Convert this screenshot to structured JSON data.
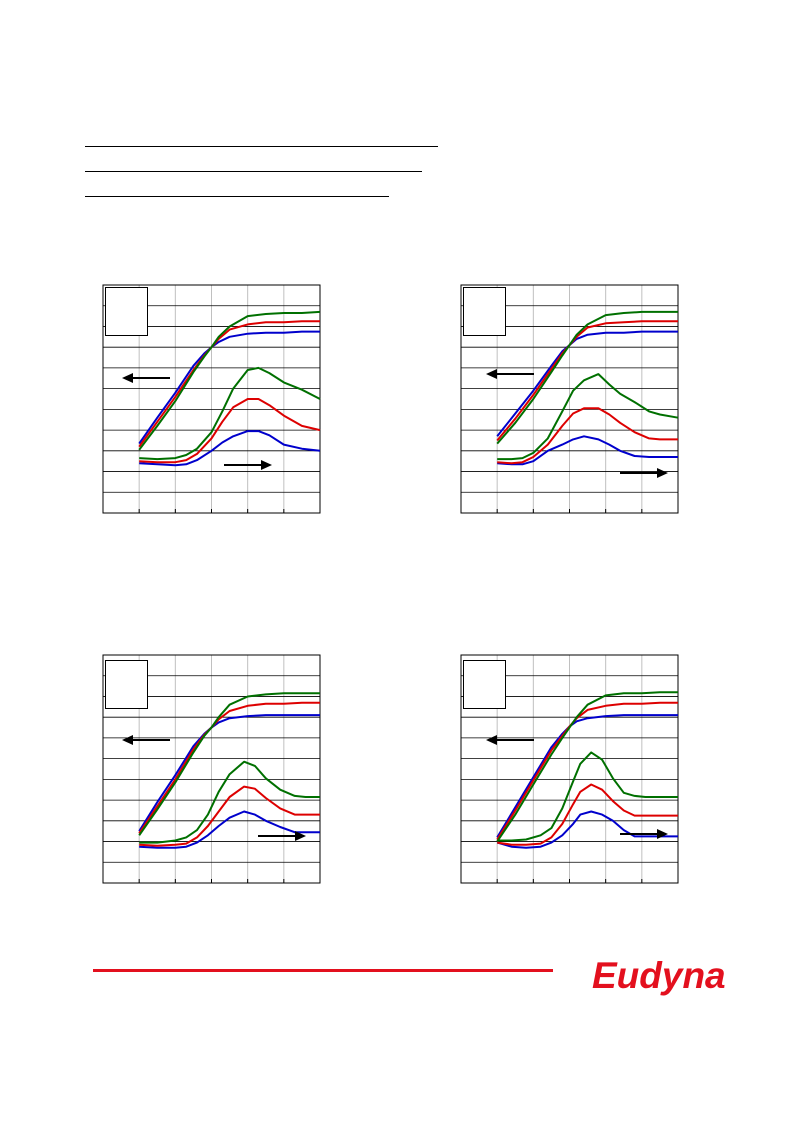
{
  "page": {
    "background": "#ffffff"
  },
  "footer": {
    "rule_color": "#e3101e",
    "logo_text": "Eudyna",
    "logo_color": "#e3101e"
  },
  "icons": {
    "arrow_left": "arrow-left-icon",
    "arrow_right": "arrow-right-icon"
  },
  "colors": {
    "series_1": "#0000cc",
    "series_2": "#dd0000",
    "series_3": "#007000"
  },
  "chart_data": [
    {
      "type": "line",
      "grid": true,
      "xlim": [
        0,
        6
      ],
      "ylim": [
        0,
        11
      ],
      "series": [
        {
          "color": "#0000cc",
          "axis": "left",
          "x": [
            1,
            1.5,
            2,
            2.5,
            2.8,
            3,
            3.2,
            3.5,
            4,
            4.5,
            5,
            5.5,
            6
          ],
          "y": [
            3.35,
            4.6,
            5.8,
            7.1,
            7.7,
            8.0,
            8.25,
            8.5,
            8.65,
            8.7,
            8.7,
            8.75,
            8.75
          ]
        },
        {
          "color": "#dd0000",
          "axis": "left",
          "x": [
            1,
            1.5,
            2,
            2.5,
            2.8,
            3,
            3.2,
            3.5,
            4,
            4.5,
            5,
            5.5,
            6
          ],
          "y": [
            3.2,
            4.4,
            5.6,
            6.9,
            7.6,
            8.0,
            8.4,
            8.85,
            9.1,
            9.2,
            9.2,
            9.25,
            9.25
          ]
        },
        {
          "color": "#007000",
          "axis": "left",
          "x": [
            1,
            1.5,
            2,
            2.5,
            2.8,
            3,
            3.2,
            3.5,
            4,
            4.5,
            5,
            5.5,
            6
          ],
          "y": [
            3.05,
            4.2,
            5.4,
            6.8,
            7.55,
            8.0,
            8.5,
            9.0,
            9.5,
            9.6,
            9.65,
            9.65,
            9.7
          ]
        },
        {
          "color": "#0000cc",
          "axis": "right",
          "x": [
            1,
            1.5,
            2,
            2.3,
            2.6,
            3,
            3.3,
            3.6,
            4,
            4.3,
            4.6,
            5,
            5.5,
            6
          ],
          "y": [
            2.4,
            2.35,
            2.3,
            2.35,
            2.55,
            3.0,
            3.4,
            3.7,
            3.95,
            3.95,
            3.75,
            3.3,
            3.1,
            3.0
          ]
        },
        {
          "color": "#dd0000",
          "axis": "right",
          "x": [
            1,
            1.5,
            2,
            2.3,
            2.6,
            3,
            3.3,
            3.6,
            4,
            4.3,
            4.6,
            5,
            5.5,
            6
          ],
          "y": [
            2.5,
            2.45,
            2.45,
            2.55,
            2.85,
            3.6,
            4.4,
            5.1,
            5.5,
            5.5,
            5.2,
            4.7,
            4.2,
            4.0
          ]
        },
        {
          "color": "#007000",
          "axis": "right",
          "x": [
            1,
            1.5,
            2,
            2.3,
            2.6,
            3,
            3.3,
            3.6,
            4,
            4.3,
            4.6,
            5,
            5.5,
            6
          ],
          "y": [
            2.65,
            2.6,
            2.65,
            2.8,
            3.1,
            3.9,
            4.9,
            6.0,
            6.9,
            7.0,
            6.75,
            6.3,
            5.95,
            5.5
          ]
        }
      ]
    },
    {
      "type": "line",
      "grid": true,
      "xlim": [
        0,
        6
      ],
      "ylim": [
        0,
        11
      ],
      "series": [
        {
          "color": "#0000cc",
          "axis": "left",
          "x": [
            1,
            1.5,
            2,
            2.5,
            2.8,
            3,
            3.2,
            3.5,
            4,
            4.5,
            5,
            5.5,
            6
          ],
          "y": [
            3.7,
            4.8,
            5.9,
            7.1,
            7.8,
            8.1,
            8.4,
            8.6,
            8.7,
            8.7,
            8.75,
            8.75,
            8.75
          ]
        },
        {
          "color": "#dd0000",
          "axis": "left",
          "x": [
            1,
            1.5,
            2,
            2.5,
            2.8,
            3,
            3.2,
            3.5,
            4,
            4.5,
            5,
            5.5,
            6
          ],
          "y": [
            3.5,
            4.55,
            5.7,
            6.95,
            7.7,
            8.1,
            8.5,
            8.95,
            9.15,
            9.2,
            9.25,
            9.25,
            9.25
          ]
        },
        {
          "color": "#007000",
          "axis": "left",
          "x": [
            1,
            1.5,
            2,
            2.5,
            2.8,
            3,
            3.2,
            3.5,
            4,
            4.5,
            5,
            5.5,
            6
          ],
          "y": [
            3.35,
            4.35,
            5.5,
            6.8,
            7.6,
            8.1,
            8.6,
            9.1,
            9.55,
            9.65,
            9.7,
            9.7,
            9.7
          ]
        },
        {
          "color": "#0000cc",
          "axis": "right",
          "x": [
            1,
            1.4,
            1.7,
            2,
            2.4,
            2.8,
            3.1,
            3.4,
            3.8,
            4.1,
            4.4,
            4.8,
            5.2,
            5.5,
            6
          ],
          "y": [
            2.4,
            2.35,
            2.35,
            2.5,
            3.0,
            3.3,
            3.55,
            3.7,
            3.55,
            3.3,
            3.0,
            2.75,
            2.7,
            2.7,
            2.7
          ]
        },
        {
          "color": "#dd0000",
          "axis": "right",
          "x": [
            1,
            1.4,
            1.7,
            2,
            2.4,
            2.8,
            3.1,
            3.4,
            3.8,
            4.1,
            4.4,
            4.8,
            5.2,
            5.5,
            6
          ],
          "y": [
            2.45,
            2.4,
            2.45,
            2.7,
            3.3,
            4.2,
            4.8,
            5.05,
            5.05,
            4.75,
            4.35,
            3.9,
            3.6,
            3.55,
            3.55
          ]
        },
        {
          "color": "#007000",
          "axis": "right",
          "x": [
            1,
            1.4,
            1.7,
            2,
            2.4,
            2.8,
            3.1,
            3.4,
            3.8,
            4.1,
            4.4,
            4.8,
            5.2,
            5.5,
            6
          ],
          "y": [
            2.6,
            2.6,
            2.65,
            2.9,
            3.6,
            4.9,
            5.9,
            6.4,
            6.7,
            6.2,
            5.75,
            5.35,
            4.9,
            4.75,
            4.6
          ]
        }
      ]
    },
    {
      "type": "line",
      "grid": true,
      "xlim": [
        0,
        6
      ],
      "ylim": [
        0,
        11
      ],
      "series": [
        {
          "color": "#0000cc",
          "axis": "left",
          "x": [
            1,
            1.5,
            2,
            2.5,
            2.8,
            3,
            3.2,
            3.5,
            4,
            4.5,
            5,
            5.5,
            6
          ],
          "y": [
            2.5,
            3.9,
            5.2,
            6.6,
            7.2,
            7.5,
            7.75,
            7.95,
            8.05,
            8.1,
            8.1,
            8.1,
            8.1
          ]
        },
        {
          "color": "#dd0000",
          "axis": "left",
          "x": [
            1,
            1.5,
            2,
            2.5,
            2.8,
            3,
            3.2,
            3.5,
            4,
            4.5,
            5,
            5.5,
            6
          ],
          "y": [
            2.4,
            3.7,
            5.0,
            6.45,
            7.15,
            7.5,
            7.9,
            8.3,
            8.55,
            8.65,
            8.65,
            8.7,
            8.7
          ]
        },
        {
          "color": "#007000",
          "axis": "left",
          "x": [
            1,
            1.5,
            2,
            2.5,
            2.8,
            3,
            3.2,
            3.5,
            4,
            4.5,
            5,
            5.5,
            6
          ],
          "y": [
            2.3,
            3.55,
            4.85,
            6.3,
            7.1,
            7.5,
            8.0,
            8.6,
            9.0,
            9.1,
            9.15,
            9.15,
            9.15
          ]
        },
        {
          "color": "#0000cc",
          "axis": "right",
          "x": [
            1,
            1.5,
            2,
            2.3,
            2.6,
            2.9,
            3.2,
            3.5,
            3.9,
            4.2,
            4.5,
            4.9,
            5.3,
            5.6,
            6
          ],
          "y": [
            1.75,
            1.7,
            1.7,
            1.75,
            1.95,
            2.3,
            2.75,
            3.15,
            3.45,
            3.3,
            3.0,
            2.7,
            2.45,
            2.45,
            2.45
          ]
        },
        {
          "color": "#dd0000",
          "axis": "right",
          "x": [
            1,
            1.5,
            2,
            2.3,
            2.6,
            2.9,
            3.2,
            3.5,
            3.9,
            4.2,
            4.5,
            4.9,
            5.3,
            5.6,
            6
          ],
          "y": [
            1.85,
            1.8,
            1.85,
            1.9,
            2.2,
            2.75,
            3.45,
            4.15,
            4.65,
            4.55,
            4.1,
            3.6,
            3.3,
            3.3,
            3.3
          ]
        },
        {
          "color": "#007000",
          "axis": "right",
          "x": [
            1,
            1.5,
            2,
            2.3,
            2.6,
            2.9,
            3.2,
            3.5,
            3.9,
            4.2,
            4.5,
            4.9,
            5.3,
            5.6,
            6
          ],
          "y": [
            1.95,
            1.95,
            2.05,
            2.2,
            2.55,
            3.3,
            4.4,
            5.25,
            5.85,
            5.65,
            5.05,
            4.5,
            4.2,
            4.15,
            4.15
          ]
        }
      ]
    },
    {
      "type": "line",
      "grid": true,
      "xlim": [
        0,
        6
      ],
      "ylim": [
        0,
        11
      ],
      "series": [
        {
          "color": "#0000cc",
          "axis": "left",
          "x": [
            1,
            1.5,
            2,
            2.5,
            2.8,
            3,
            3.2,
            3.5,
            4,
            4.5,
            5,
            5.5,
            6
          ],
          "y": [
            2.2,
            3.65,
            5.1,
            6.55,
            7.2,
            7.55,
            7.8,
            7.95,
            8.05,
            8.1,
            8.1,
            8.1,
            8.1
          ]
        },
        {
          "color": "#dd0000",
          "axis": "left",
          "x": [
            1,
            1.5,
            2,
            2.5,
            2.8,
            3,
            3.2,
            3.5,
            4,
            4.5,
            5,
            5.5,
            6
          ],
          "y": [
            2.1,
            3.5,
            4.95,
            6.4,
            7.1,
            7.55,
            7.95,
            8.35,
            8.55,
            8.65,
            8.65,
            8.7,
            8.7
          ]
        },
        {
          "color": "#007000",
          "axis": "left",
          "x": [
            1,
            1.5,
            2,
            2.5,
            2.8,
            3,
            3.2,
            3.5,
            4,
            4.5,
            5,
            5.5,
            6
          ],
          "y": [
            2.0,
            3.3,
            4.75,
            6.2,
            7.0,
            7.5,
            8.0,
            8.6,
            9.05,
            9.15,
            9.15,
            9.2,
            9.2
          ]
        },
        {
          "color": "#0000cc",
          "axis": "right",
          "x": [
            1,
            1.4,
            1.8,
            2.2,
            2.5,
            2.8,
            3.1,
            3.3,
            3.6,
            3.9,
            4.2,
            4.5,
            4.8,
            5.1,
            5.4,
            6
          ],
          "y": [
            1.95,
            1.75,
            1.7,
            1.75,
            1.95,
            2.3,
            2.85,
            3.3,
            3.45,
            3.3,
            3.0,
            2.55,
            2.25,
            2.25,
            2.25,
            2.25
          ]
        },
        {
          "color": "#dd0000",
          "axis": "right",
          "x": [
            1,
            1.4,
            1.8,
            2.2,
            2.5,
            2.8,
            3.1,
            3.3,
            3.6,
            3.9,
            4.2,
            4.5,
            4.8,
            5.1,
            5.4,
            6
          ],
          "y": [
            1.95,
            1.85,
            1.85,
            1.9,
            2.2,
            2.85,
            3.8,
            4.4,
            4.75,
            4.5,
            3.95,
            3.5,
            3.25,
            3.25,
            3.25,
            3.25
          ]
        },
        {
          "color": "#007000",
          "axis": "right",
          "x": [
            1,
            1.4,
            1.8,
            2.2,
            2.5,
            2.8,
            3.1,
            3.3,
            3.6,
            3.9,
            4.2,
            4.5,
            4.8,
            5.1,
            5.4,
            6
          ],
          "y": [
            2.05,
            2.05,
            2.1,
            2.3,
            2.65,
            3.6,
            4.9,
            5.75,
            6.3,
            5.95,
            5.05,
            4.35,
            4.2,
            4.15,
            4.15,
            4.15
          ]
        }
      ]
    }
  ]
}
